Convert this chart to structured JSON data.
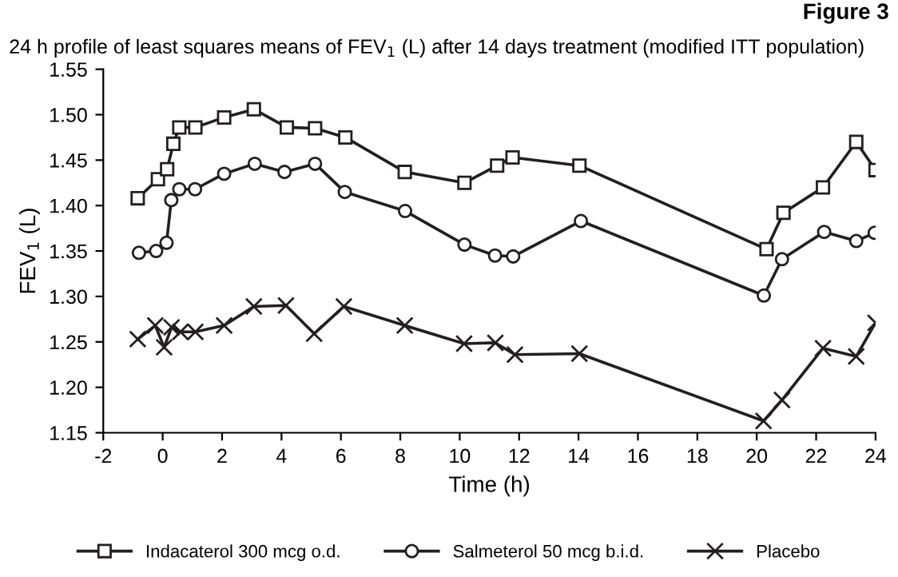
{
  "chart_data": {
    "type": "line",
    "subtitle": "24 h profile of least squares means of FEV$_{1}$ (L) after 14 days treatment (modified ITT population)",
    "annotations": [
      "Figure 3"
    ],
    "xlabel": "Time (h)",
    "ylabel": "FEV$_{1}$ (L)",
    "xlim": [
      -2,
      24
    ],
    "xticks": [
      -2,
      0,
      2,
      4,
      6,
      8,
      10,
      12,
      14,
      16,
      18,
      20,
      22,
      24
    ],
    "ylim": [
      1.15,
      1.55
    ],
    "yticks": [
      1.15,
      {
        "value": 1.2,
        "label": "1.20"
      },
      1.25,
      {
        "value": 1.3,
        "label": "1.30"
      },
      1.35,
      {
        "value": 1.4,
        "label": "1.40"
      },
      1.45,
      {
        "value": 1.5,
        "label": "1.50"
      },
      1.55
    ],
    "grid": false,
    "legend": "bottom",
    "series": [
      {
        "name": "Indacaterol 300 mcg o.d.",
        "color": "#231f20",
        "marker": "square",
        "x": [
          -0.84,
          -0.16,
          0.15,
          0.36,
          0.56,
          1.1,
          2.07,
          3.07,
          4.18,
          5.13,
          6.15,
          8.15,
          10.16,
          11.26,
          11.78,
          14.03,
          20.33,
          20.9,
          22.23,
          23.35,
          24.0
        ],
        "values": [
          1.408,
          1.429,
          1.44,
          1.468,
          1.486,
          1.486,
          1.497,
          1.506,
          1.486,
          1.485,
          1.475,
          1.437,
          1.425,
          1.444,
          1.453,
          1.444,
          1.352,
          1.392,
          1.42,
          1.47,
          1.439
        ]
      },
      {
        "name": "Salmeterol 50 mcg b.i.d.",
        "color": "#231f20",
        "marker": "circle",
        "x": [
          -0.8,
          -0.22,
          0.13,
          0.29,
          0.56,
          1.09,
          2.07,
          3.1,
          4.1,
          5.13,
          6.13,
          8.16,
          10.16,
          11.19,
          11.8,
          14.08,
          20.24,
          20.85,
          22.27,
          23.35,
          23.97
        ],
        "values": [
          1.348,
          1.35,
          1.359,
          1.406,
          1.418,
          1.418,
          1.435,
          1.446,
          1.437,
          1.446,
          1.415,
          1.394,
          1.357,
          1.345,
          1.344,
          1.383,
          1.301,
          1.341,
          1.371,
          1.361,
          1.37
        ]
      },
      {
        "name": "Placebo",
        "color": "#231f20",
        "marker": "cross",
        "x": [
          -0.84,
          -0.25,
          0.05,
          0.3,
          0.6,
          1.1,
          2.07,
          3.07,
          4.15,
          5.1,
          6.1,
          8.15,
          10.15,
          11.2,
          11.86,
          14.03,
          20.23,
          20.85,
          22.23,
          23.35,
          24.0
        ],
        "values": [
          1.253,
          1.268,
          1.244,
          1.266,
          1.261,
          1.261,
          1.268,
          1.289,
          1.29,
          1.259,
          1.289,
          1.268,
          1.248,
          1.249,
          1.236,
          1.237,
          1.163,
          1.186,
          1.243,
          1.234,
          1.271
        ]
      }
    ]
  }
}
